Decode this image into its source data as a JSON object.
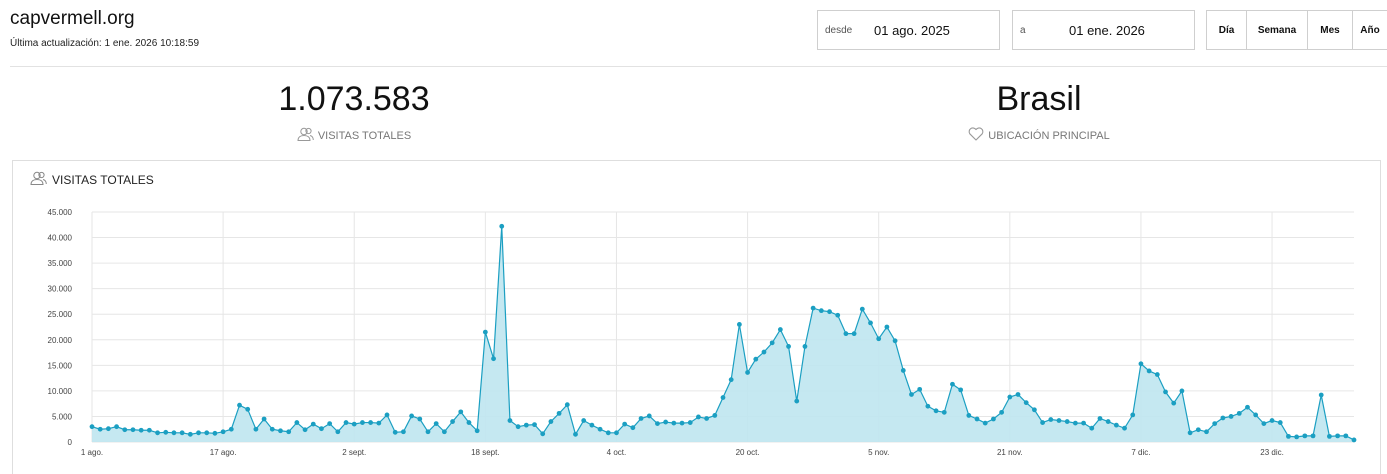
{
  "header": {
    "site_title": "capvermell.org",
    "last_update": "Última actualización: 1 ene. 2026 10:18:59"
  },
  "date_range": {
    "from_label": "desde",
    "from_value": "01 ago. 2025",
    "to_label": "a",
    "to_value": "01 ene. 2026"
  },
  "period_buttons": [
    "Día",
    "Semana",
    "Mes",
    "Año"
  ],
  "kpis": {
    "total_visits_value": "1.073.583",
    "total_visits_label": "VISITAS TOTALES",
    "top_location_value": "Brasil",
    "top_location_label": "UBICACIÓN PRINCIPAL"
  },
  "panel": {
    "title": "VISITAS TOTALES"
  },
  "colors": {
    "line": "#1b9fc2",
    "fill": "#bfe5f0",
    "grid": "#e6e6e6"
  },
  "chart_data": {
    "type": "area",
    "title": "VISITAS TOTALES",
    "xlabel": "",
    "ylabel": "",
    "ylim": [
      0,
      45000
    ],
    "grid": true,
    "y_ticks": [
      {
        "value": 0,
        "label": "0"
      },
      {
        "value": 5000,
        "label": "5.000"
      },
      {
        "value": 10000,
        "label": "10.000"
      },
      {
        "value": 15000,
        "label": "15.000"
      },
      {
        "value": 20000,
        "label": "20.000"
      },
      {
        "value": 25000,
        "label": "25.000"
      },
      {
        "value": 30000,
        "label": "30.000"
      },
      {
        "value": 35000,
        "label": "35.000"
      },
      {
        "value": 40000,
        "label": "40.000"
      },
      {
        "value": 45000,
        "label": "45.000"
      }
    ],
    "x_ticks": [
      {
        "day": 0,
        "label": "1 ago."
      },
      {
        "day": 16,
        "label": "17 ago."
      },
      {
        "day": 32,
        "label": "2 sept."
      },
      {
        "day": 48,
        "label": "18 sept."
      },
      {
        "day": 64,
        "label": "4 oct."
      },
      {
        "day": 80,
        "label": "20 oct."
      },
      {
        "day": 96,
        "label": "5 nov."
      },
      {
        "day": 112,
        "label": "21 nov."
      },
      {
        "day": 128,
        "label": "7 dic."
      },
      {
        "day": 144,
        "label": "23 dic."
      }
    ],
    "x_start": "2025-08-01",
    "values": [
      3000,
      2500,
      2600,
      3000,
      2400,
      2400,
      2300,
      2300,
      1800,
      1900,
      1800,
      1800,
      1500,
      1800,
      1800,
      1700,
      2000,
      2500,
      7200,
      6400,
      2500,
      4500,
      2500,
      2200,
      2000,
      3800,
      2400,
      3500,
      2600,
      3600,
      2000,
      3800,
      3500,
      3800,
      3800,
      3700,
      5300,
      1900,
      2000,
      5100,
      4500,
      2000,
      3600,
      2000,
      4000,
      5900,
      3800,
      2200,
      21500,
      16300,
      42200,
      4200,
      3000,
      3300,
      3400,
      1600,
      4000,
      5600,
      7300,
      1500,
      4200,
      3300,
      2500,
      1800,
      1800,
      3500,
      2800,
      4600,
      5100,
      3600,
      3900,
      3700,
      3700,
      3800,
      4900,
      4600,
      5200,
      8700,
      12200,
      23000,
      13600,
      16200,
      17600,
      19400,
      22000,
      18700,
      8000,
      18700,
      26200,
      25700,
      25500,
      24800,
      21200,
      21200,
      26000,
      23300,
      20200,
      22500,
      19800,
      14000,
      9300,
      10300,
      7000,
      6100,
      5800,
      11300,
      10200,
      5200,
      4500,
      3700,
      4500,
      5800,
      8800,
      9300,
      7700,
      6300,
      3800,
      4400,
      4200,
      4000,
      3700,
      3700,
      2700,
      4600,
      4000,
      3300,
      2700,
      5300,
      15300,
      13900,
      13200,
      9800,
      7600,
      10000,
      1800,
      2400,
      2000,
      3600,
      4700,
      5000,
      5600,
      6800,
      5300,
      3600,
      4200,
      3800,
      1100,
      1000,
      1200,
      1200,
      9200,
      1100,
      1200,
      1200,
      400
    ]
  }
}
